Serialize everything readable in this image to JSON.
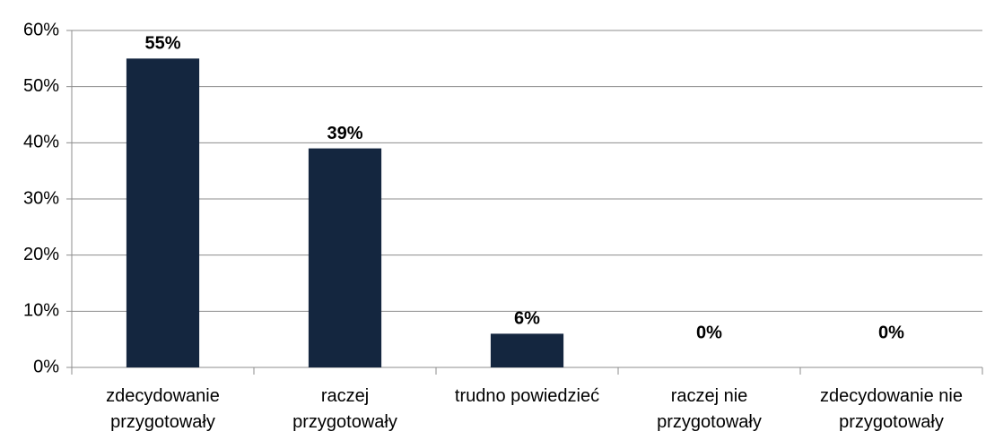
{
  "chart_data": {
    "type": "bar",
    "categories": [
      "zdecydowanie\nprzygotowały",
      "raczej\nprzygotowały",
      "trudno powiedzieć",
      "raczej nie\nprzygotowały",
      "zdecydowanie nie\nprzygotowały"
    ],
    "values": [
      55,
      39,
      6,
      0,
      0
    ],
    "value_labels": [
      "55%",
      "39%",
      "6%",
      "0%",
      "0%"
    ],
    "color": "#14263f",
    "ylim": [
      0,
      60
    ],
    "yticks": [
      {
        "value": 0,
        "label": "0%"
      },
      {
        "value": 10,
        "label": "10%"
      },
      {
        "value": 20,
        "label": "20%"
      },
      {
        "value": 30,
        "label": "30%"
      },
      {
        "value": 40,
        "label": "40%"
      },
      {
        "value": 50,
        "label": "50%"
      },
      {
        "value": 60,
        "label": "60%"
      }
    ],
    "grid": true
  }
}
